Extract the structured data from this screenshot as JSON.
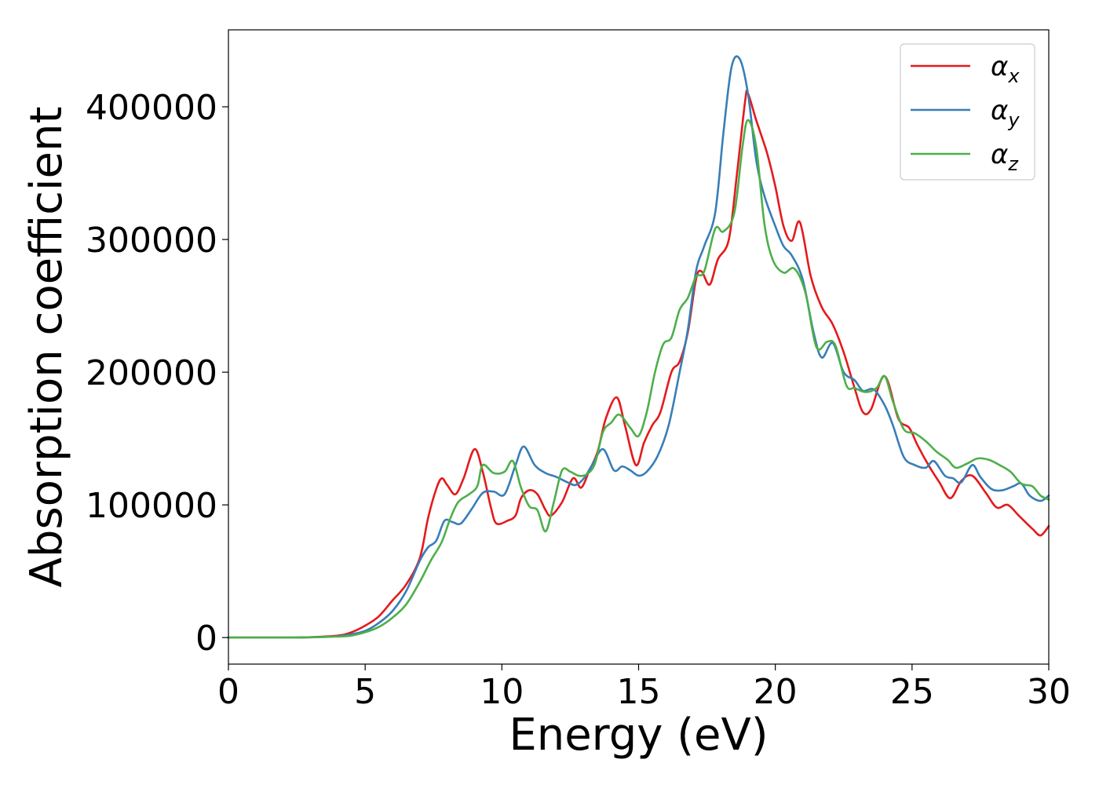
{
  "chart_data": {
    "type": "line",
    "xlabel": "Energy (eV)",
    "ylabel": "Absorption coefficient",
    "xlim": [
      0,
      30
    ],
    "ylim": [
      -20000,
      458000
    ],
    "x_ticks": [
      0,
      5,
      10,
      15,
      20,
      25,
      30
    ],
    "y_ticks": [
      0,
      100000,
      200000,
      300000,
      400000
    ],
    "x_tick_labels": [
      "0",
      "5",
      "10",
      "15",
      "20",
      "25",
      "30"
    ],
    "y_tick_labels": [
      "0",
      "100000",
      "200000",
      "300000",
      "400000"
    ],
    "grid": false,
    "legend_position": "top-right",
    "series": [
      {
        "name": "α_x",
        "legend_symbol": "α",
        "legend_subscript": "x",
        "color": "#e41a1c",
        "points": [
          [
            0,
            0
          ],
          [
            2,
            0
          ],
          [
            3,
            300
          ],
          [
            4,
            1500
          ],
          [
            4.5,
            4000
          ],
          [
            5,
            9000
          ],
          [
            5.5,
            16000
          ],
          [
            6,
            28000
          ],
          [
            6.5,
            40000
          ],
          [
            7,
            60000
          ],
          [
            7.3,
            90000
          ],
          [
            7.6,
            112000
          ],
          [
            7.8,
            120000
          ],
          [
            8,
            115000
          ],
          [
            8.3,
            108000
          ],
          [
            8.6,
            120000
          ],
          [
            9,
            142000
          ],
          [
            9.3,
            125000
          ],
          [
            9.6,
            98000
          ],
          [
            9.8,
            86000
          ],
          [
            10.2,
            88000
          ],
          [
            10.5,
            92000
          ],
          [
            10.7,
            105000
          ],
          [
            11,
            111000
          ],
          [
            11.3,
            108000
          ],
          [
            11.6,
            96000
          ],
          [
            11.8,
            92000
          ],
          [
            12.2,
            102000
          ],
          [
            12.6,
            120000
          ],
          [
            12.9,
            113000
          ],
          [
            13.2,
            126000
          ],
          [
            13.5,
            140000
          ],
          [
            13.8,
            165000
          ],
          [
            14.2,
            181000
          ],
          [
            14.5,
            160000
          ],
          [
            14.9,
            130000
          ],
          [
            15.2,
            147000
          ],
          [
            15.5,
            160000
          ],
          [
            15.8,
            170000
          ],
          [
            16.2,
            200000
          ],
          [
            16.5,
            208000
          ],
          [
            16.8,
            230000
          ],
          [
            17.1,
            270000
          ],
          [
            17.3,
            276000
          ],
          [
            17.6,
            266000
          ],
          [
            17.9,
            285000
          ],
          [
            18.3,
            300000
          ],
          [
            18.6,
            350000
          ],
          [
            18.9,
            405000
          ],
          [
            19,
            410000
          ],
          [
            19.3,
            390000
          ],
          [
            19.7,
            365000
          ],
          [
            20,
            340000
          ],
          [
            20.3,
            310000
          ],
          [
            20.6,
            299000
          ],
          [
            20.9,
            313000
          ],
          [
            21.3,
            272000
          ],
          [
            21.7,
            249000
          ],
          [
            22.1,
            236000
          ],
          [
            22.5,
            215000
          ],
          [
            22.9,
            188000
          ],
          [
            23.2,
            170000
          ],
          [
            23.5,
            172000
          ],
          [
            24,
            197000
          ],
          [
            24.5,
            165000
          ],
          [
            24.9,
            158000
          ],
          [
            25.2,
            145000
          ],
          [
            25.6,
            130000
          ],
          [
            26,
            117000
          ],
          [
            26.4,
            105000
          ],
          [
            26.8,
            118000
          ],
          [
            27.2,
            122000
          ],
          [
            27.7,
            109000
          ],
          [
            28.1,
            98000
          ],
          [
            28.5,
            100000
          ],
          [
            28.9,
            92000
          ],
          [
            29.4,
            82000
          ],
          [
            29.7,
            77000
          ],
          [
            30,
            84000
          ]
        ]
      },
      {
        "name": "α_y",
        "legend_symbol": "α",
        "legend_subscript": "y",
        "color": "#377eb8",
        "points": [
          [
            0,
            0
          ],
          [
            2,
            0
          ],
          [
            3,
            200
          ],
          [
            4,
            1000
          ],
          [
            4.5,
            2500
          ],
          [
            5,
            5000
          ],
          [
            5.5,
            11000
          ],
          [
            6,
            20000
          ],
          [
            6.5,
            35000
          ],
          [
            7,
            58000
          ],
          [
            7.3,
            68000
          ],
          [
            7.6,
            73000
          ],
          [
            7.9,
            88000
          ],
          [
            8.2,
            87000
          ],
          [
            8.5,
            86000
          ],
          [
            8.9,
            97000
          ],
          [
            9.3,
            109000
          ],
          [
            9.7,
            110000
          ],
          [
            10.1,
            108000
          ],
          [
            10.5,
            130000
          ],
          [
            10.8,
            144000
          ],
          [
            11.2,
            130000
          ],
          [
            11.6,
            124000
          ],
          [
            12,
            121000
          ],
          [
            12.4,
            117000
          ],
          [
            12.7,
            115000
          ],
          [
            13,
            120000
          ],
          [
            13.3,
            130000
          ],
          [
            13.7,
            142000
          ],
          [
            14.1,
            126000
          ],
          [
            14.4,
            129000
          ],
          [
            14.7,
            126000
          ],
          [
            15,
            122000
          ],
          [
            15.3,
            125000
          ],
          [
            15.7,
            137000
          ],
          [
            16.1,
            160000
          ],
          [
            16.5,
            200000
          ],
          [
            16.8,
            232000
          ],
          [
            17.1,
            276000
          ],
          [
            17.4,
            295000
          ],
          [
            17.8,
            320000
          ],
          [
            18.1,
            380000
          ],
          [
            18.4,
            430000
          ],
          [
            18.7,
            436000
          ],
          [
            19,
            410000
          ],
          [
            19.3,
            360000
          ],
          [
            19.6,
            333000
          ],
          [
            20,
            310000
          ],
          [
            20.3,
            295000
          ],
          [
            20.6,
            288000
          ],
          [
            21,
            270000
          ],
          [
            21.4,
            230000
          ],
          [
            21.7,
            211000
          ],
          [
            22.1,
            222000
          ],
          [
            22.5,
            200000
          ],
          [
            22.9,
            194000
          ],
          [
            23.2,
            186000
          ],
          [
            23.6,
            187000
          ],
          [
            24,
            175000
          ],
          [
            24.3,
            160000
          ],
          [
            24.7,
            136000
          ],
          [
            25.1,
            130000
          ],
          [
            25.5,
            128000
          ],
          [
            25.8,
            133000
          ],
          [
            26.2,
            122000
          ],
          [
            26.5,
            120000
          ],
          [
            26.8,
            117000
          ],
          [
            27.2,
            130000
          ],
          [
            27.5,
            121000
          ],
          [
            27.9,
            112000
          ],
          [
            28.3,
            111000
          ],
          [
            28.7,
            114000
          ],
          [
            29,
            116000
          ],
          [
            29.3,
            107000
          ],
          [
            29.7,
            103000
          ],
          [
            30,
            107000
          ]
        ]
      },
      {
        "name": "α_z",
        "legend_symbol": "α",
        "legend_subscript": "z",
        "color": "#4daf4a",
        "points": [
          [
            0,
            0
          ],
          [
            2,
            0
          ],
          [
            3,
            200
          ],
          [
            4,
            800
          ],
          [
            4.5,
            1500
          ],
          [
            5,
            4000
          ],
          [
            5.5,
            8000
          ],
          [
            6,
            15000
          ],
          [
            6.5,
            25000
          ],
          [
            7,
            42000
          ],
          [
            7.4,
            58000
          ],
          [
            7.8,
            72000
          ],
          [
            8.1,
            89000
          ],
          [
            8.4,
            102000
          ],
          [
            8.8,
            108000
          ],
          [
            9.1,
            114000
          ],
          [
            9.3,
            130000
          ],
          [
            9.7,
            124000
          ],
          [
            10.1,
            125000
          ],
          [
            10.4,
            133000
          ],
          [
            10.7,
            113000
          ],
          [
            11,
            99000
          ],
          [
            11.3,
            96000
          ],
          [
            11.6,
            80000
          ],
          [
            11.9,
            102000
          ],
          [
            12.2,
            126000
          ],
          [
            12.5,
            125000
          ],
          [
            12.8,
            122000
          ],
          [
            13.1,
            123000
          ],
          [
            13.4,
            131000
          ],
          [
            13.7,
            155000
          ],
          [
            14,
            162000
          ],
          [
            14.3,
            168000
          ],
          [
            14.7,
            158000
          ],
          [
            15,
            152000
          ],
          [
            15.3,
            170000
          ],
          [
            15.6,
            200000
          ],
          [
            15.9,
            221000
          ],
          [
            16.2,
            226000
          ],
          [
            16.5,
            247000
          ],
          [
            16.8,
            256000
          ],
          [
            17.1,
            272000
          ],
          [
            17.4,
            276000
          ],
          [
            17.8,
            308000
          ],
          [
            18.1,
            306000
          ],
          [
            18.5,
            320000
          ],
          [
            18.8,
            370000
          ],
          [
            19,
            390000
          ],
          [
            19.3,
            370000
          ],
          [
            19.6,
            312000
          ],
          [
            19.9,
            285000
          ],
          [
            20.3,
            275000
          ],
          [
            20.7,
            278000
          ],
          [
            21.1,
            260000
          ],
          [
            21.5,
            219000
          ],
          [
            21.9,
            223000
          ],
          [
            22.2,
            220000
          ],
          [
            22.6,
            190000
          ],
          [
            22.9,
            188000
          ],
          [
            23.3,
            185000
          ],
          [
            23.7,
            188000
          ],
          [
            24,
            197000
          ],
          [
            24.3,
            178000
          ],
          [
            24.7,
            157000
          ],
          [
            25.1,
            154000
          ],
          [
            25.5,
            148000
          ],
          [
            25.9,
            140000
          ],
          [
            26.3,
            134000
          ],
          [
            26.6,
            128000
          ],
          [
            27,
            131000
          ],
          [
            27.4,
            135000
          ],
          [
            27.8,
            134000
          ],
          [
            28.2,
            130000
          ],
          [
            28.6,
            125000
          ],
          [
            29,
            116000
          ],
          [
            29.4,
            114000
          ],
          [
            29.7,
            107000
          ],
          [
            30,
            104000
          ]
        ]
      }
    ]
  }
}
